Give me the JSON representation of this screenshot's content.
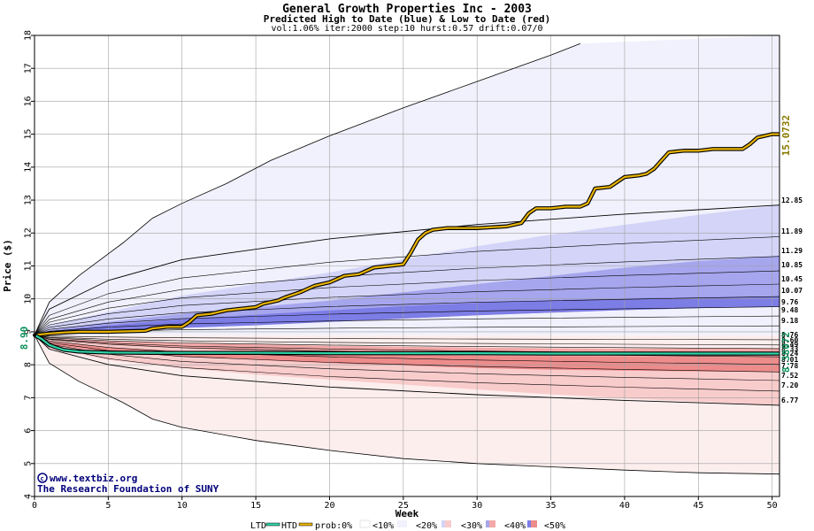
{
  "chart_data": {
    "type": "area",
    "title": "General Growth Properties Inc - 2003",
    "subtitle": "Predicted High to Date (blue) &  Low to Date (red)",
    "params": "vol:1.06% iter:2000 step:10 hurst:0.57 drift:0.07/0",
    "xlabel": "Week",
    "ylabel": "Price ($)",
    "xlim": [
      0,
      50.5
    ],
    "ylim": [
      4,
      18
    ],
    "xticks": [
      0,
      5,
      10,
      15,
      20,
      25,
      30,
      35,
      40,
      45,
      50
    ],
    "yticks": [
      4,
      5,
      6,
      7,
      8,
      9,
      10,
      11,
      12,
      13,
      14,
      15,
      16,
      17,
      18
    ],
    "grid": true,
    "start_price": 8.9,
    "start_label": "8.90",
    "htd_end_label": "15.0732",
    "ltd_end_label": "8.38072",
    "end_labels": [
      "12.85",
      "11.89",
      "11.29",
      "10.85",
      "10.45",
      "10.07",
      "9.76",
      "9.48",
      "9.18",
      "8.76",
      "8.60",
      "8.49",
      "8.33",
      "8.24",
      "8.01",
      "7.78",
      "7.52",
      "7.20",
      "6.77"
    ],
    "upper_envelope": {
      "x": [
        0,
        1,
        3,
        6,
        8,
        10,
        13,
        16,
        20,
        25,
        30,
        35,
        37
      ],
      "y": [
        8.9,
        9.9,
        10.7,
        11.7,
        12.45,
        12.9,
        13.5,
        14.2,
        14.95,
        15.8,
        16.6,
        17.4,
        17.75
      ]
    },
    "lower_envelope": {
      "x": [
        0,
        1,
        3,
        6,
        8,
        10,
        15,
        20,
        25,
        30,
        35,
        40,
        45,
        50.5
      ],
      "y": [
        8.9,
        8.05,
        7.5,
        6.85,
        6.35,
        6.1,
        5.7,
        5.4,
        5.15,
        5.0,
        4.9,
        4.8,
        4.72,
        4.68
      ]
    },
    "bands": [
      {
        "prob": "<10%",
        "side": "high",
        "x": [
          0,
          1,
          5,
          10,
          15,
          20,
          25,
          30,
          35,
          40,
          45,
          50.5
        ],
        "upper": [
          8.9,
          9.2,
          9.6,
          10.1,
          10.45,
          10.8,
          11.2,
          11.6,
          11.95,
          12.25,
          12.55,
          12.85
        ],
        "lower": [
          8.9,
          9.05,
          9.3,
          9.55,
          9.75,
          9.95,
          10.2,
          10.45,
          10.7,
          10.95,
          11.15,
          11.3
        ]
      },
      {
        "prob": "<30%",
        "side": "high",
        "x": [
          0,
          1,
          5,
          10,
          15,
          20,
          25,
          30,
          35,
          40,
          45,
          50.5
        ],
        "upper": [
          8.9,
          9.05,
          9.3,
          9.55,
          9.75,
          9.95,
          10.2,
          10.45,
          10.7,
          10.95,
          11.15,
          11.3
        ],
        "lower": [
          8.9,
          8.96,
          9.05,
          9.12,
          9.2,
          9.3,
          9.4,
          9.5,
          9.58,
          9.66,
          9.72,
          9.76
        ]
      },
      {
        "prob": "<50%",
        "side": "high",
        "x": [
          0,
          1,
          5,
          10,
          15,
          20,
          25,
          30,
          35,
          40,
          45,
          50.5
        ],
        "upper": [
          8.9,
          9.02,
          9.2,
          9.38,
          9.52,
          9.65,
          9.78,
          9.88,
          9.96,
          10.02,
          10.05,
          10.07
        ],
        "lower": [
          8.9,
          8.96,
          9.05,
          9.12,
          9.2,
          9.3,
          9.4,
          9.5,
          9.58,
          9.66,
          9.72,
          9.76
        ]
      },
      {
        "prob": "<10%",
        "side": "low",
        "x": [
          0,
          1,
          5,
          10,
          15,
          20,
          25,
          30,
          35,
          40,
          45,
          50.5
        ],
        "upper": [
          8.9,
          8.75,
          8.6,
          8.5,
          8.4,
          8.3,
          8.2,
          8.1,
          8.0,
          7.95,
          7.9,
          7.78
        ],
        "lower": [
          8.9,
          8.5,
          8.15,
          7.9,
          7.7,
          7.55,
          7.4,
          7.25,
          7.1,
          6.98,
          6.88,
          6.77
        ]
      },
      {
        "prob": "<30%",
        "side": "low",
        "x": [
          0,
          1,
          5,
          10,
          15,
          20,
          25,
          30,
          35,
          40,
          45,
          50.5
        ],
        "upper": [
          8.9,
          8.8,
          8.72,
          8.66,
          8.62,
          8.58,
          8.55,
          8.52,
          8.5,
          8.49,
          8.49,
          8.49
        ],
        "lower": [
          8.9,
          8.75,
          8.6,
          8.5,
          8.4,
          8.3,
          8.2,
          8.1,
          8.0,
          7.95,
          7.9,
          7.78
        ]
      },
      {
        "prob": "<50%",
        "side": "low",
        "x": [
          0,
          1,
          5,
          10,
          15,
          20,
          25,
          30,
          35,
          40,
          45,
          50.5
        ],
        "upper": [
          8.9,
          8.7,
          8.52,
          8.42,
          8.36,
          8.32,
          8.29,
          8.27,
          8.26,
          8.25,
          8.24,
          8.24
        ],
        "lower": [
          8.9,
          8.6,
          8.4,
          8.25,
          8.15,
          8.05,
          7.98,
          7.9,
          7.85,
          7.82,
          7.8,
          7.78
        ]
      }
    ],
    "series": [
      {
        "name": "HTD",
        "color": "#e8b400",
        "x": [
          0,
          1,
          2,
          3,
          5,
          7.5,
          8,
          9,
          10,
          10.5,
          11,
          12,
          12.5,
          13,
          14,
          15,
          15.5,
          16,
          16.5,
          17,
          18,
          18.5,
          19,
          20,
          20.5,
          21,
          22,
          22.5,
          23,
          24,
          25,
          25.5,
          26,
          26.5,
          27,
          28,
          30,
          32,
          33,
          33.5,
          34,
          35,
          36,
          37,
          37.5,
          38,
          39,
          40,
          41,
          41.5,
          42,
          42.5,
          43,
          44,
          45,
          46,
          48,
          48.5,
          49,
          50,
          50.5
        ],
        "y": [
          8.9,
          8.95,
          8.98,
          9.0,
          9.0,
          9.03,
          9.1,
          9.15,
          9.15,
          9.3,
          9.5,
          9.55,
          9.6,
          9.65,
          9.7,
          9.75,
          9.85,
          9.9,
          9.95,
          10.05,
          10.2,
          10.3,
          10.4,
          10.5,
          10.6,
          10.7,
          10.75,
          10.85,
          10.95,
          11.0,
          11.05,
          11.4,
          11.8,
          12.0,
          12.1,
          12.15,
          12.15,
          12.2,
          12.3,
          12.6,
          12.75,
          12.75,
          12.8,
          12.8,
          12.9,
          13.35,
          13.4,
          13.7,
          13.75,
          13.8,
          13.95,
          14.2,
          14.45,
          14.5,
          14.5,
          14.55,
          14.55,
          14.7,
          14.9,
          15.0,
          15.0
        ]
      },
      {
        "name": "LTD",
        "color": "#2fd3a8",
        "x": [
          0,
          0.5,
          1,
          1.5,
          2,
          3,
          5,
          8,
          10,
          15,
          20,
          25,
          30,
          35,
          40,
          45,
          50,
          50.5
        ],
        "y": [
          8.9,
          8.78,
          8.6,
          8.52,
          8.45,
          8.4,
          8.37,
          8.36,
          8.36,
          8.36,
          8.35,
          8.35,
          8.35,
          8.34,
          8.34,
          8.34,
          8.34,
          8.34
        ]
      }
    ],
    "legend": {
      "ltd": "LTD",
      "htd": "HTD",
      "prob_label": "prob:0%",
      "items": [
        "<10%",
        "<20%",
        "<30%",
        "<40%",
        "<50%"
      ]
    },
    "watermark": {
      "url": "www.textbiz.org",
      "org": "The Research Foundation of SUNY"
    }
  },
  "colors": {
    "plot_bg": "#ffffff",
    "high_outer": "#f1f1fd",
    "high_10": "#d4d4f8",
    "high_30": "#a6a6ee",
    "high_50": "#7d7de6",
    "low_outer": "#fdeeee",
    "low_10": "#f9cccc",
    "low_30": "#f2a8a8",
    "low_50": "#ee8c8c",
    "grid": "#a0a0a0",
    "label_green": "#0a8f5a",
    "label_gold": "#8a7a00"
  }
}
